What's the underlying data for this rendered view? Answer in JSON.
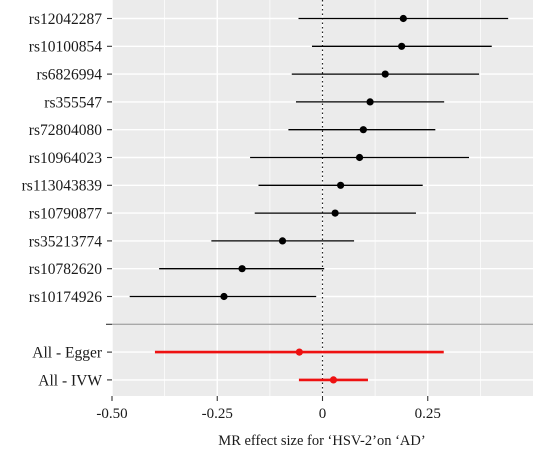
{
  "chart_data": {
    "type": "forest",
    "title": "",
    "xlabel": "MR effect size for ‘HSV-2’on ‘AD’",
    "ylabel": "",
    "xlim": [
      -0.5,
      0.5
    ],
    "xticks": [
      {
        "value": -0.5,
        "label": "-0.50"
      },
      {
        "value": -0.25,
        "label": "-0.25"
      },
      {
        "value": 0,
        "label": "0"
      },
      {
        "value": 0.25,
        "label": "0.25"
      }
    ],
    "reference_line": 0,
    "grid": true,
    "snps": [
      {
        "label": "rs12042287",
        "estimate": 0.192,
        "lower": -0.057,
        "upper": 0.441
      },
      {
        "label": "rs10100854",
        "estimate": 0.188,
        "lower": -0.025,
        "upper": 0.402
      },
      {
        "label": "rs6826994",
        "estimate": 0.149,
        "lower": -0.073,
        "upper": 0.372
      },
      {
        "label": "rs355547",
        "estimate": 0.113,
        "lower": -0.063,
        "upper": 0.289
      },
      {
        "label": "rs72804080",
        "estimate": 0.097,
        "lower": -0.081,
        "upper": 0.268
      },
      {
        "label": "rs10964023",
        "estimate": 0.088,
        "lower": -0.172,
        "upper": 0.348
      },
      {
        "label": "rs113043839",
        "estimate": 0.043,
        "lower": -0.152,
        "upper": 0.238
      },
      {
        "label": "rs10790877",
        "estimate": 0.03,
        "lower": -0.161,
        "upper": 0.222
      },
      {
        "label": "rs35213774",
        "estimate": -0.095,
        "lower": -0.264,
        "upper": 0.075
      },
      {
        "label": "rs10782620",
        "estimate": -0.191,
        "lower": -0.388,
        "upper": 0.004
      },
      {
        "label": "rs10174926",
        "estimate": -0.234,
        "lower": -0.458,
        "upper": -0.015
      }
    ],
    "pooled": [
      {
        "label": "All - Egger",
        "estimate": -0.055,
        "lower": -0.398,
        "upper": 0.288
      },
      {
        "label": "All - IVW",
        "estimate": 0.026,
        "lower": -0.056,
        "upper": 0.108
      }
    ],
    "colors": {
      "panel": "#ebebeb",
      "grid": "#ffffff",
      "snp": "#000000",
      "pooled": "#ee1111",
      "separator": "#a8a8a8",
      "axis_text": "#1a1a1a"
    }
  }
}
